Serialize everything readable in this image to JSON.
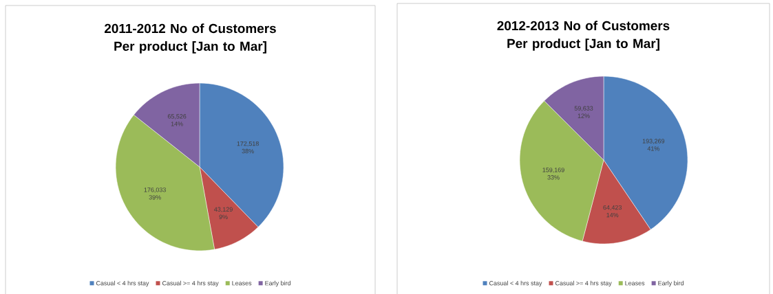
{
  "chart_data": [
    {
      "type": "pie",
      "title": "2011-2012 No of Customers Per product [Jan to Mar]",
      "categories": [
        "Casual < 4 hrs stay",
        "Casual >= 4 hrs stay",
        "Leases",
        "Early bird"
      ],
      "values": [
        172518,
        43129,
        176033,
        65526
      ],
      "colors": [
        "#4f81bd",
        "#c0504d",
        "#9bbb59",
        "#8064a2"
      ],
      "value_labels": [
        "172,518 38%",
        "43,129 9%",
        "176,033 39%",
        "65,526 14%"
      ],
      "legend": "bottom"
    },
    {
      "type": "pie",
      "title": "2012-2013 No of Customers Per product [Jan to Mar]",
      "categories": [
        "Casual < 4 hrs stay",
        "Casual >= 4 hrs stay",
        "Leases",
        "Early bird"
      ],
      "values": [
        193269,
        64423,
        159169,
        59633
      ],
      "colors": [
        "#4f81bd",
        "#c0504d",
        "#9bbb59",
        "#8064a2"
      ],
      "value_labels": [
        "193,269 41%",
        "64,423 14%",
        "159,169 33%",
        "59,633 12%"
      ],
      "legend": "bottom"
    }
  ]
}
